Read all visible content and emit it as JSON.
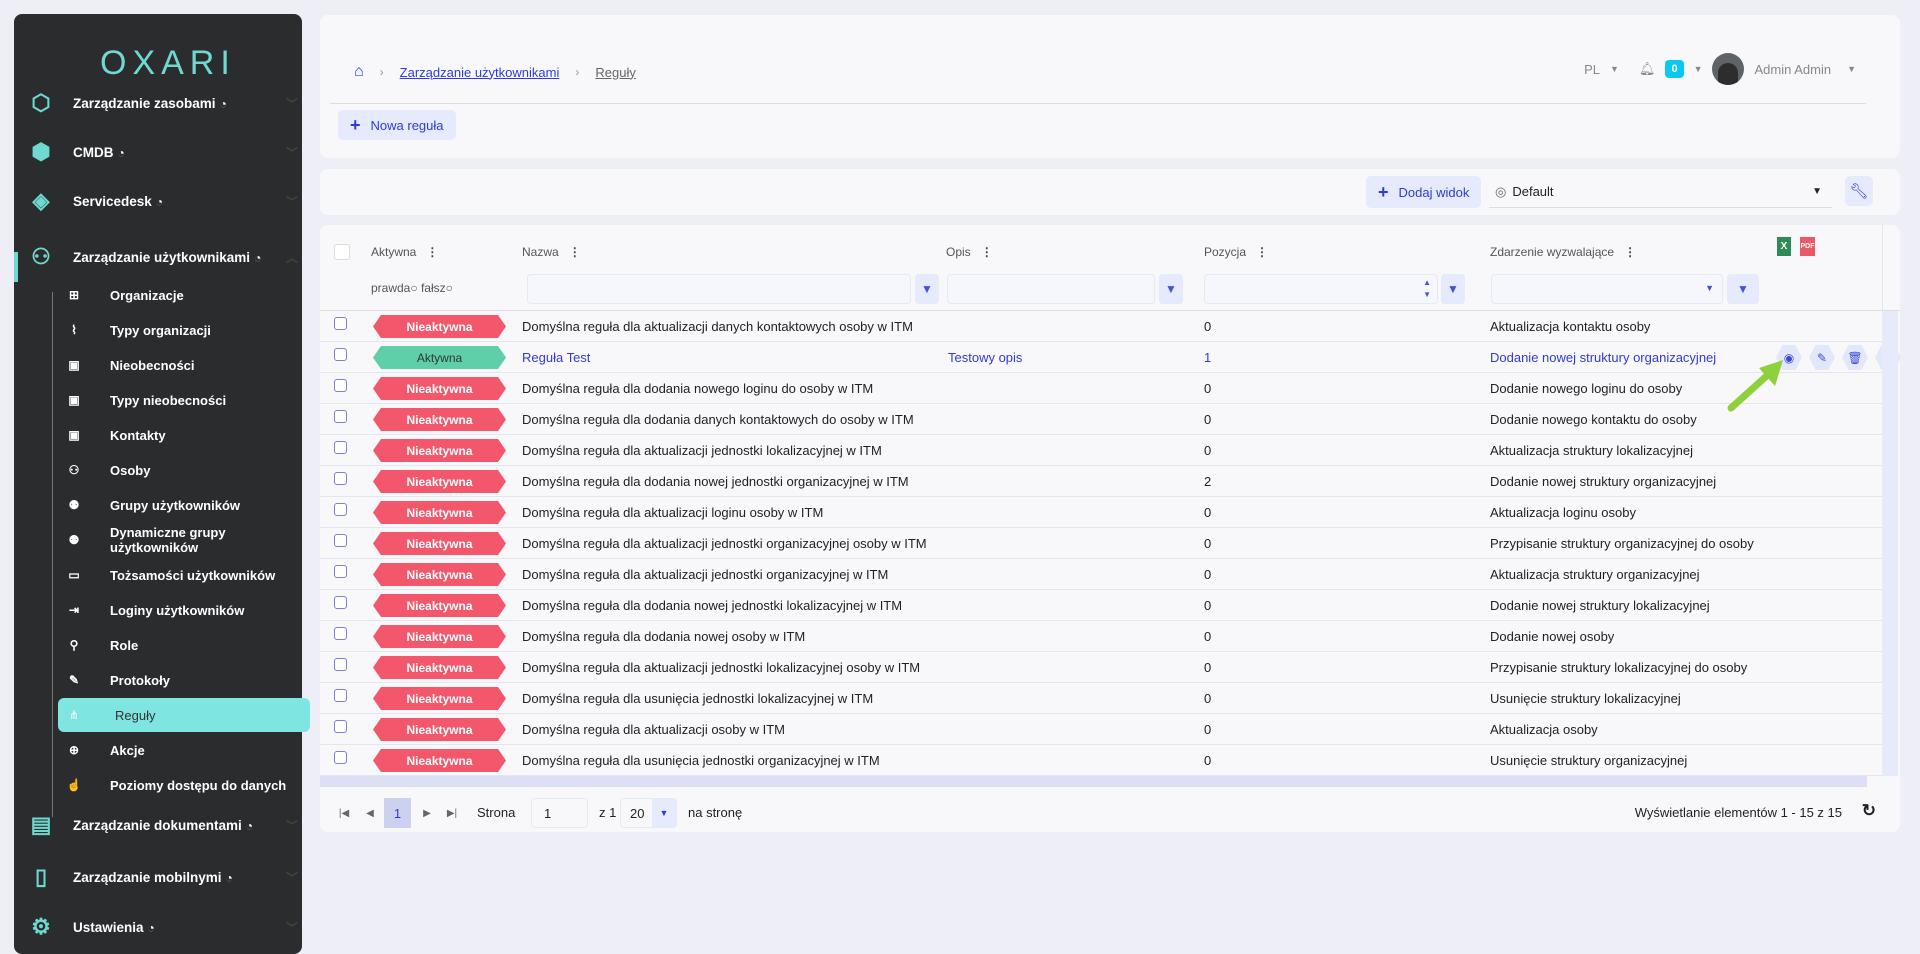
{
  "sidebar": {
    "logo": "OXARI",
    "modules": [
      {
        "label": "Zarządzanie zasobami",
        "icon": "hexagons-icon"
      },
      {
        "label": "CMDB",
        "icon": "cmdb-icon"
      },
      {
        "label": "Servicedesk",
        "icon": "headset-icon"
      },
      {
        "label": "Zarządzanie użytkownikami",
        "icon": "users-tree-icon"
      }
    ],
    "items": [
      {
        "label": "Organizacje",
        "icon": "sitemap-icon"
      },
      {
        "label": "Typy organizacji",
        "icon": "vector-icon"
      },
      {
        "label": "Nieobecności",
        "icon": "book-icon"
      },
      {
        "label": "Typy nieobecności",
        "icon": "book-icon"
      },
      {
        "label": "Kontakty",
        "icon": "address-book-icon"
      },
      {
        "label": "Osoby",
        "icon": "people-icon"
      },
      {
        "label": "Grupy użytkowników",
        "icon": "group-icon"
      },
      {
        "label": "Dynamiczne grupy użytkowników",
        "icon": "group-icon"
      },
      {
        "label": "Tożsamości użytkowników",
        "icon": "id-card-icon"
      },
      {
        "label": "Loginy użytkowników",
        "icon": "login-icon"
      },
      {
        "label": "Role",
        "icon": "user-tag-icon"
      },
      {
        "label": "Protokoły",
        "icon": "file-signature-icon"
      },
      {
        "label": "Reguły",
        "icon": "nodes-icon",
        "active": true
      },
      {
        "label": "Akcje",
        "icon": "crosshair-icon"
      },
      {
        "label": "Poziomy dostępu do danych",
        "icon": "hand-icon"
      }
    ],
    "bottom_modules": [
      {
        "label": "Zarządzanie dokumentami",
        "icon": "documents-icon"
      },
      {
        "label": "Zarządzanie mobilnymi",
        "icon": "mobile-icon"
      },
      {
        "label": "Ustawienia",
        "icon": "gear-icon"
      }
    ]
  },
  "breadcrumb": {
    "parent": "Zarządzanie użytkownikami",
    "current": "Reguły"
  },
  "header": {
    "lang": "PL",
    "notifications": "0",
    "user": "Admin Admin"
  },
  "actions": {
    "new_rule": "Nowa reguła",
    "add_view": "Dodaj widok",
    "view_select": "Default"
  },
  "table": {
    "columns": {
      "active": "Aktywna",
      "name": "Nazwa",
      "desc": "Opis",
      "pos": "Pozycja",
      "event": "Zdarzenie wyzwalające"
    },
    "active_filter": {
      "true": "prawda",
      "false": "fałsz"
    },
    "export": {
      "excel": "X",
      "pdf": "PDF"
    },
    "colors": {
      "inactive": "#f2576b",
      "active": "#5fcfa9",
      "accent": "#2e3bd6"
    },
    "rows": [
      {
        "status": "Nieaktywna",
        "name": "Domyślna reguła dla aktualizacji danych kontaktowych osoby w ITM",
        "desc": "",
        "pos": "0",
        "event": "Aktualizacja kontaktu osoby"
      },
      {
        "status": "Aktywna",
        "name": "Reguła Test",
        "desc": "Testowy opis",
        "pos": "1",
        "event": "Dodanie nowej struktury organizacyjnej",
        "highlight": true
      },
      {
        "status": "Nieaktywna",
        "name": "Domyślna reguła dla dodania nowego loginu do osoby w ITM",
        "desc": "",
        "pos": "0",
        "event": "Dodanie nowego loginu do osoby"
      },
      {
        "status": "Nieaktywna",
        "name": "Domyślna reguła dla dodania danych kontaktowych do osoby w ITM",
        "desc": "",
        "pos": "0",
        "event": "Dodanie nowego kontaktu do osoby"
      },
      {
        "status": "Nieaktywna",
        "name": "Domyślna reguła dla aktualizacji jednostki lokalizacyjnej w ITM",
        "desc": "",
        "pos": "0",
        "event": "Aktualizacja struktury lokalizacyjnej"
      },
      {
        "status": "Nieaktywna",
        "name": "Domyślna reguła dla dodania nowej jednostki organizacyjnej w ITM",
        "desc": "",
        "pos": "2",
        "event": "Dodanie nowej struktury organizacyjnej"
      },
      {
        "status": "Nieaktywna",
        "name": "Domyślna reguła dla aktualizacji loginu osoby w ITM",
        "desc": "",
        "pos": "0",
        "event": "Aktualizacja loginu osoby"
      },
      {
        "status": "Nieaktywna",
        "name": "Domyślna reguła dla aktualizacji jednostki organizacyjnej osoby w ITM",
        "desc": "",
        "pos": "0",
        "event": "Przypisanie struktury organizacyjnej do osoby"
      },
      {
        "status": "Nieaktywna",
        "name": "Domyślna reguła dla aktualizacji jednostki organizacyjnej w ITM",
        "desc": "",
        "pos": "0",
        "event": "Aktualizacja struktury organizacyjnej"
      },
      {
        "status": "Nieaktywna",
        "name": "Domyślna reguła dla dodania nowej jednostki lokalizacyjnej w ITM",
        "desc": "",
        "pos": "0",
        "event": "Dodanie nowej struktury lokalizacyjnej"
      },
      {
        "status": "Nieaktywna",
        "name": "Domyślna reguła dla dodania nowej osoby w ITM",
        "desc": "",
        "pos": "0",
        "event": "Dodanie nowej osoby"
      },
      {
        "status": "Nieaktywna",
        "name": "Domyślna reguła dla aktualizacji jednostki lokalizacyjnej osoby w ITM",
        "desc": "",
        "pos": "0",
        "event": "Przypisanie struktury lokalizacyjnej do osoby"
      },
      {
        "status": "Nieaktywna",
        "name": "Domyślna reguła dla usunięcia jednostki lokalizacyjnej w ITM",
        "desc": "",
        "pos": "0",
        "event": "Usunięcie struktury lokalizacyjnej"
      },
      {
        "status": "Nieaktywna",
        "name": "Domyślna reguła dla aktualizacji osoby w ITM",
        "desc": "",
        "pos": "0",
        "event": "Aktualizacja osoby"
      },
      {
        "status": "Nieaktywna",
        "name": "Domyślna reguła dla usunięcia jednostki organizacyjnej w ITM",
        "desc": "",
        "pos": "0",
        "event": "Usunięcie struktury organizacyjnej"
      }
    ],
    "row_actions": [
      "eye-icon",
      "edit-icon",
      "trash-icon",
      "send-icon"
    ]
  },
  "pagination": {
    "current": "1",
    "page_label": "Strona",
    "page_value": "1",
    "of": "z 1",
    "per_page": "20",
    "per_page_label": "na stronę",
    "summary": "Wyświetlanie elementów 1 - 15 z 15"
  }
}
